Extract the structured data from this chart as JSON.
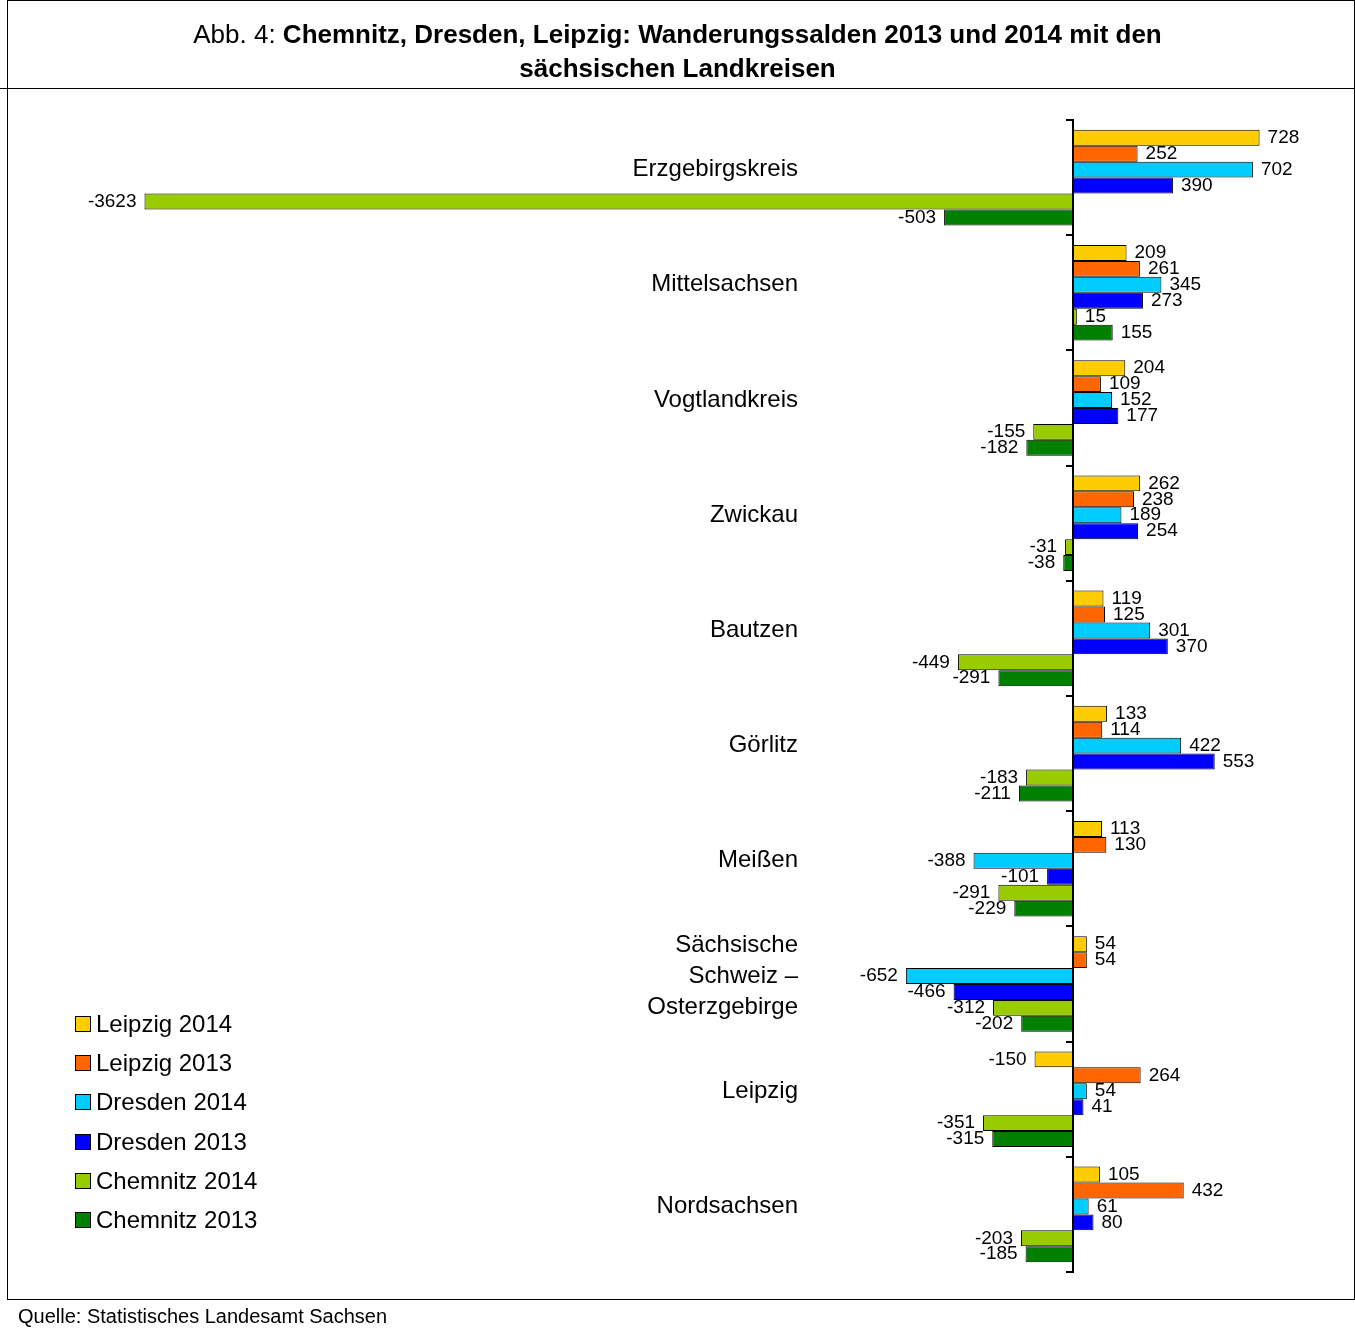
{
  "chart_data": {
    "type": "bar",
    "orientation": "horizontal",
    "title": "Abb. 4: Chemnitz, Dresden, Leipzig: Wanderungssalden 2013 und 2014 mit den sächsischen Landkreisen",
    "categories": [
      "Erzgebirgskreis",
      "Mittelsachsen",
      "Vogtlandkreis",
      "Zwickau",
      "Bautzen",
      "Görlitz",
      "Meißen",
      "Sächsische Schweiz – Osterzgebirge",
      "Leipzig",
      "Nordsachsen"
    ],
    "series": [
      {
        "name": "Leipzig 2014",
        "color": "#ffcc00",
        "values": [
          728,
          209,
          204,
          262,
          119,
          133,
          113,
          54,
          -150,
          105
        ]
      },
      {
        "name": "Leipzig 2013",
        "color": "#ff6600",
        "values": [
          252,
          261,
          109,
          238,
          125,
          114,
          130,
          54,
          264,
          432
        ]
      },
      {
        "name": "Dresden 2014",
        "color": "#00ccff",
        "values": [
          702,
          345,
          152,
          189,
          301,
          422,
          -388,
          -652,
          54,
          61
        ]
      },
      {
        "name": "Dresden 2013",
        "color": "#0000ff",
        "values": [
          390,
          273,
          177,
          254,
          370,
          553,
          -101,
          -466,
          41,
          80
        ]
      },
      {
        "name": "Chemnitz 2014",
        "color": "#99cc00",
        "values": [
          -3623,
          15,
          -155,
          -31,
          -449,
          -183,
          -291,
          -312,
          -351,
          -203
        ]
      },
      {
        "name": "Chemnitz 2013",
        "color": "#008000",
        "values": [
          -503,
          155,
          -182,
          -38,
          -291,
          -211,
          -229,
          -202,
          -315,
          -185
        ]
      }
    ],
    "data_labels": true,
    "legend": "bottom left",
    "grid": false,
    "annotations": [
      "Quelle: Statistisches Landesamt Sachsen"
    ]
  }
}
